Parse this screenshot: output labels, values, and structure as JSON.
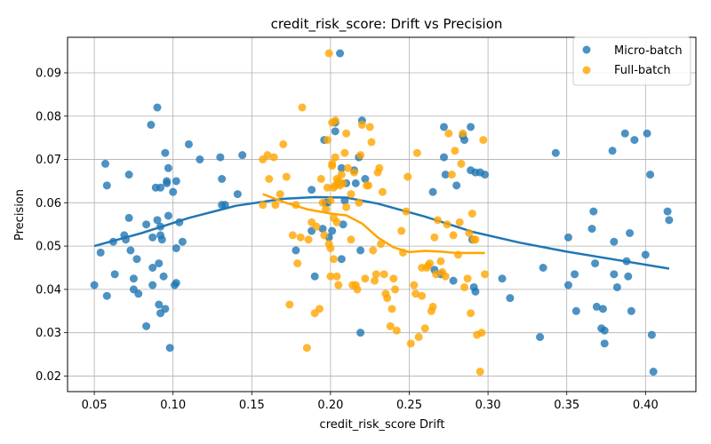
{
  "chart_data": {
    "type": "scatter",
    "title": "credit_risk_score: Drift vs Precision",
    "xlabel": "credit_risk_score Drift",
    "ylabel": "Precision",
    "xlim": [
      0.033,
      0.432
    ],
    "ylim": [
      0.0164,
      0.0982
    ],
    "xticks": [
      0.05,
      0.1,
      0.15,
      0.2,
      0.25,
      0.3,
      0.35,
      0.4
    ],
    "xtick_labels": [
      "0.05",
      "0.10",
      "0.15",
      "0.20",
      "0.25",
      "0.30",
      "0.35",
      "0.40"
    ],
    "yticks": [
      0.02,
      0.03,
      0.04,
      0.05,
      0.06,
      0.07,
      0.08,
      0.09
    ],
    "ytick_labels": [
      "0.02",
      "0.03",
      "0.04",
      "0.05",
      "0.06",
      "0.07",
      "0.08",
      "0.09"
    ],
    "grid": true,
    "legend_position": "top-right",
    "series": [
      {
        "name": "Micro-batch",
        "color": "#1f77b4",
        "points": [
          [
            0.05,
            0.041
          ],
          [
            0.054,
            0.0485
          ],
          [
            0.057,
            0.069
          ],
          [
            0.058,
            0.064
          ],
          [
            0.058,
            0.0385
          ],
          [
            0.062,
            0.051
          ],
          [
            0.063,
            0.0435
          ],
          [
            0.069,
            0.0525
          ],
          [
            0.07,
            0.0515
          ],
          [
            0.072,
            0.0665
          ],
          [
            0.072,
            0.0565
          ],
          [
            0.073,
            0.049
          ],
          [
            0.075,
            0.04
          ],
          [
            0.075,
            0.0425
          ],
          [
            0.077,
            0.047
          ],
          [
            0.078,
            0.039
          ],
          [
            0.083,
            0.0315
          ],
          [
            0.083,
            0.055
          ],
          [
            0.086,
            0.078
          ],
          [
            0.087,
            0.045
          ],
          [
            0.087,
            0.052
          ],
          [
            0.087,
            0.041
          ],
          [
            0.089,
            0.0635
          ],
          [
            0.09,
            0.082
          ],
          [
            0.09,
            0.056
          ],
          [
            0.091,
            0.0365
          ],
          [
            0.091,
            0.046
          ],
          [
            0.092,
            0.0525
          ],
          [
            0.092,
            0.0635
          ],
          [
            0.092,
            0.0545
          ],
          [
            0.092,
            0.0345
          ],
          [
            0.093,
            0.0515
          ],
          [
            0.094,
            0.043
          ],
          [
            0.095,
            0.0355
          ],
          [
            0.095,
            0.0715
          ],
          [
            0.096,
            0.065
          ],
          [
            0.096,
            0.0645
          ],
          [
            0.097,
            0.068
          ],
          [
            0.097,
            0.057
          ],
          [
            0.098,
            0.0265
          ],
          [
            0.1,
            0.0625
          ],
          [
            0.101,
            0.041
          ],
          [
            0.102,
            0.0495
          ],
          [
            0.102,
            0.065
          ],
          [
            0.102,
            0.0415
          ],
          [
            0.104,
            0.0555
          ],
          [
            0.106,
            0.051
          ],
          [
            0.11,
            0.0735
          ],
          [
            0.117,
            0.07
          ],
          [
            0.13,
            0.0705
          ],
          [
            0.131,
            0.0655
          ],
          [
            0.131,
            0.0595
          ],
          [
            0.133,
            0.0595
          ],
          [
            0.141,
            0.062
          ],
          [
            0.144,
            0.071
          ],
          [
            0.178,
            0.049
          ],
          [
            0.188,
            0.063
          ],
          [
            0.188,
            0.0535
          ],
          [
            0.19,
            0.043
          ],
          [
            0.195,
            0.054
          ],
          [
            0.196,
            0.0745
          ],
          [
            0.197,
            0.06
          ],
          [
            0.198,
            0.06
          ],
          [
            0.199,
            0.052
          ],
          [
            0.201,
            0.0535
          ],
          [
            0.203,
            0.0765
          ],
          [
            0.203,
            0.0785
          ],
          [
            0.205,
            0.0645
          ],
          [
            0.206,
            0.0945
          ],
          [
            0.207,
            0.068
          ],
          [
            0.207,
            0.047
          ],
          [
            0.208,
            0.055
          ],
          [
            0.209,
            0.0605
          ],
          [
            0.21,
            0.0645
          ],
          [
            0.215,
            0.0675
          ],
          [
            0.216,
            0.0645
          ],
          [
            0.218,
            0.0705
          ],
          [
            0.219,
            0.03
          ],
          [
            0.219,
            0.049
          ],
          [
            0.22,
            0.079
          ],
          [
            0.222,
            0.0655
          ],
          [
            0.265,
            0.0625
          ],
          [
            0.266,
            0.0445
          ],
          [
            0.27,
            0.0435
          ],
          [
            0.272,
            0.0775
          ],
          [
            0.272,
            0.0705
          ],
          [
            0.273,
            0.0665
          ],
          [
            0.278,
            0.042
          ],
          [
            0.28,
            0.064
          ],
          [
            0.284,
            0.0755
          ],
          [
            0.285,
            0.0745
          ],
          [
            0.289,
            0.0775
          ],
          [
            0.289,
            0.0675
          ],
          [
            0.29,
            0.0515
          ],
          [
            0.291,
            0.0405
          ],
          [
            0.292,
            0.0395
          ],
          [
            0.292,
            0.067
          ],
          [
            0.295,
            0.067
          ],
          [
            0.298,
            0.0665
          ],
          [
            0.309,
            0.0425
          ],
          [
            0.314,
            0.038
          ],
          [
            0.333,
            0.029
          ],
          [
            0.335,
            0.045
          ],
          [
            0.343,
            0.0715
          ],
          [
            0.351,
            0.052
          ],
          [
            0.351,
            0.041
          ],
          [
            0.355,
            0.0435
          ],
          [
            0.356,
            0.035
          ],
          [
            0.366,
            0.054
          ],
          [
            0.367,
            0.058
          ],
          [
            0.368,
            0.046
          ],
          [
            0.369,
            0.036
          ],
          [
            0.372,
            0.031
          ],
          [
            0.373,
            0.0355
          ],
          [
            0.374,
            0.0305
          ],
          [
            0.374,
            0.0275
          ],
          [
            0.379,
            0.072
          ],
          [
            0.38,
            0.051
          ],
          [
            0.38,
            0.0435
          ],
          [
            0.382,
            0.0405
          ],
          [
            0.387,
            0.076
          ],
          [
            0.388,
            0.0465
          ],
          [
            0.389,
            0.043
          ],
          [
            0.39,
            0.053
          ],
          [
            0.391,
            0.035
          ],
          [
            0.393,
            0.0745
          ],
          [
            0.4,
            0.048
          ],
          [
            0.401,
            0.076
          ],
          [
            0.403,
            0.0665
          ],
          [
            0.404,
            0.0295
          ],
          [
            0.405,
            0.021
          ],
          [
            0.414,
            0.058
          ],
          [
            0.415,
            0.056
          ]
        ],
        "trend": [
          [
            0.05,
            0.05
          ],
          [
            0.08,
            0.053
          ],
          [
            0.11,
            0.0565
          ],
          [
            0.14,
            0.0593
          ],
          [
            0.17,
            0.0609
          ],
          [
            0.19,
            0.0613
          ],
          [
            0.21,
            0.0612
          ],
          [
            0.23,
            0.0598
          ],
          [
            0.26,
            0.0568
          ],
          [
            0.29,
            0.0533
          ],
          [
            0.32,
            0.0508
          ],
          [
            0.35,
            0.0487
          ],
          [
            0.38,
            0.0469
          ],
          [
            0.415,
            0.0448
          ]
        ]
      },
      {
        "name": "Full-batch",
        "color": "#ffa500",
        "points": [
          [
            0.157,
            0.07
          ],
          [
            0.157,
            0.0595
          ],
          [
            0.16,
            0.071
          ],
          [
            0.161,
            0.0655
          ],
          [
            0.164,
            0.0705
          ],
          [
            0.165,
            0.0595
          ],
          [
            0.168,
            0.062
          ],
          [
            0.17,
            0.0735
          ],
          [
            0.172,
            0.066
          ],
          [
            0.174,
            0.0365
          ],
          [
            0.176,
            0.0525
          ],
          [
            0.178,
            0.0595
          ],
          [
            0.179,
            0.046
          ],
          [
            0.181,
            0.052
          ],
          [
            0.182,
            0.082
          ],
          [
            0.185,
            0.0265
          ],
          [
            0.186,
            0.0515
          ],
          [
            0.188,
            0.0555
          ],
          [
            0.19,
            0.0345
          ],
          [
            0.191,
            0.0545
          ],
          [
            0.193,
            0.0355
          ],
          [
            0.194,
            0.0655
          ],
          [
            0.195,
            0.06
          ],
          [
            0.196,
            0.0525
          ],
          [
            0.197,
            0.0585
          ],
          [
            0.198,
            0.0635
          ],
          [
            0.198,
            0.0745
          ],
          [
            0.199,
            0.0505
          ],
          [
            0.199,
            0.0945
          ],
          [
            0.2,
            0.0495
          ],
          [
            0.2,
            0.0605
          ],
          [
            0.2,
            0.043
          ],
          [
            0.201,
            0.069
          ],
          [
            0.201,
            0.0785
          ],
          [
            0.201,
            0.0685
          ],
          [
            0.202,
            0.0635
          ],
          [
            0.202,
            0.0565
          ],
          [
            0.202,
            0.047
          ],
          [
            0.203,
            0.079
          ],
          [
            0.203,
            0.0705
          ],
          [
            0.203,
            0.064
          ],
          [
            0.204,
            0.0655
          ],
          [
            0.204,
            0.0555
          ],
          [
            0.204,
            0.043
          ],
          [
            0.205,
            0.041
          ],
          [
            0.205,
            0.065
          ],
          [
            0.206,
            0.064
          ],
          [
            0.207,
            0.0665
          ],
          [
            0.208,
            0.0645
          ],
          [
            0.209,
            0.0715
          ],
          [
            0.21,
            0.076
          ],
          [
            0.21,
            0.059
          ],
          [
            0.211,
            0.068
          ],
          [
            0.213,
            0.062
          ],
          [
            0.213,
            0.0515
          ],
          [
            0.214,
            0.041
          ],
          [
            0.215,
            0.067
          ],
          [
            0.216,
            0.041
          ],
          [
            0.217,
            0.04
          ],
          [
            0.218,
            0.06
          ],
          [
            0.219,
            0.071
          ],
          [
            0.22,
            0.078
          ],
          [
            0.222,
            0.0425
          ],
          [
            0.223,
            0.064
          ],
          [
            0.224,
            0.064
          ],
          [
            0.225,
            0.0775
          ],
          [
            0.226,
            0.074
          ],
          [
            0.227,
            0.049
          ],
          [
            0.228,
            0.042
          ],
          [
            0.229,
            0.0435
          ],
          [
            0.23,
            0.067
          ],
          [
            0.231,
            0.068
          ],
          [
            0.232,
            0.0505
          ],
          [
            0.233,
            0.0625
          ],
          [
            0.234,
            0.0435
          ],
          [
            0.235,
            0.039
          ],
          [
            0.236,
            0.038
          ],
          [
            0.238,
            0.0315
          ],
          [
            0.239,
            0.0355
          ],
          [
            0.24,
            0.0425
          ],
          [
            0.241,
            0.04
          ],
          [
            0.242,
            0.0305
          ],
          [
            0.245,
            0.0535
          ],
          [
            0.246,
            0.0485
          ],
          [
            0.248,
            0.058
          ],
          [
            0.249,
            0.066
          ],
          [
            0.251,
            0.0275
          ],
          [
            0.253,
            0.041
          ],
          [
            0.254,
            0.039
          ],
          [
            0.255,
            0.0715
          ],
          [
            0.256,
            0.029
          ],
          [
            0.258,
            0.0385
          ],
          [
            0.258,
            0.045
          ],
          [
            0.26,
            0.031
          ],
          [
            0.261,
            0.045
          ],
          [
            0.262,
            0.0455
          ],
          [
            0.263,
            0.046
          ],
          [
            0.264,
            0.035
          ],
          [
            0.265,
            0.036
          ],
          [
            0.266,
            0.052
          ],
          [
            0.267,
            0.0435
          ],
          [
            0.268,
            0.056
          ],
          [
            0.27,
            0.0465
          ],
          [
            0.271,
            0.044
          ],
          [
            0.273,
            0.043
          ],
          [
            0.274,
            0.055
          ],
          [
            0.275,
            0.076
          ],
          [
            0.277,
            0.0665
          ],
          [
            0.278,
            0.0525
          ],
          [
            0.279,
            0.072
          ],
          [
            0.281,
            0.048
          ],
          [
            0.282,
            0.0555
          ],
          [
            0.283,
            0.069
          ],
          [
            0.284,
            0.076
          ],
          [
            0.285,
            0.0405
          ],
          [
            0.287,
            0.0425
          ],
          [
            0.288,
            0.053
          ],
          [
            0.289,
            0.0345
          ],
          [
            0.29,
            0.0575
          ],
          [
            0.291,
            0.0515
          ],
          [
            0.292,
            0.0515
          ],
          [
            0.293,
            0.0295
          ],
          [
            0.295,
            0.021
          ],
          [
            0.296,
            0.03
          ],
          [
            0.297,
            0.0745
          ],
          [
            0.298,
            0.0435
          ]
        ],
        "trend": [
          [
            0.157,
            0.062
          ],
          [
            0.17,
            0.0602
          ],
          [
            0.185,
            0.0585
          ],
          [
            0.2,
            0.0575
          ],
          [
            0.21,
            0.0571
          ],
          [
            0.22,
            0.0552
          ],
          [
            0.23,
            0.052
          ],
          [
            0.24,
            0.0497
          ],
          [
            0.25,
            0.0486
          ],
          [
            0.26,
            0.0489
          ],
          [
            0.27,
            0.0487
          ],
          [
            0.28,
            0.0484
          ],
          [
            0.298,
            0.0484
          ]
        ]
      }
    ]
  }
}
